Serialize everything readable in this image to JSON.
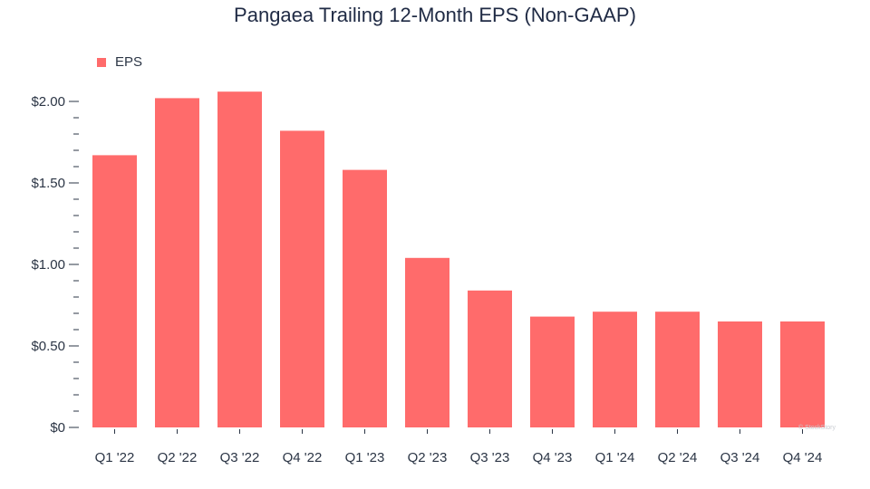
{
  "chart_data": {
    "type": "bar",
    "title": "Pangaea Trailing 12-Month EPS (Non-GAAP)",
    "xlabel": "",
    "ylabel": "",
    "categories": [
      "Q1 '22",
      "Q2 '22",
      "Q3 '22",
      "Q4 '22",
      "Q1 '23",
      "Q2 '23",
      "Q3 '23",
      "Q4 '23",
      "Q1 '24",
      "Q2 '24",
      "Q3 '24",
      "Q4 '24"
    ],
    "series": [
      {
        "name": "EPS",
        "values": [
          1.67,
          2.02,
          2.06,
          1.82,
          1.58,
          1.04,
          0.84,
          0.68,
          0.71,
          0.71,
          0.65,
          0.65
        ]
      }
    ],
    "ylim": [
      0,
      2.0
    ],
    "yticks": [
      0,
      0.5,
      1.0,
      1.5,
      2.0
    ],
    "ytick_labels": [
      "$0",
      "$0.50",
      "$1.00",
      "$1.50",
      "$2.00"
    ],
    "minor_ticks_per_major": 5,
    "grid": false,
    "legend_position": "top-left",
    "bar_color": "#ff6b6b"
  },
  "watermark": "© StockStory"
}
